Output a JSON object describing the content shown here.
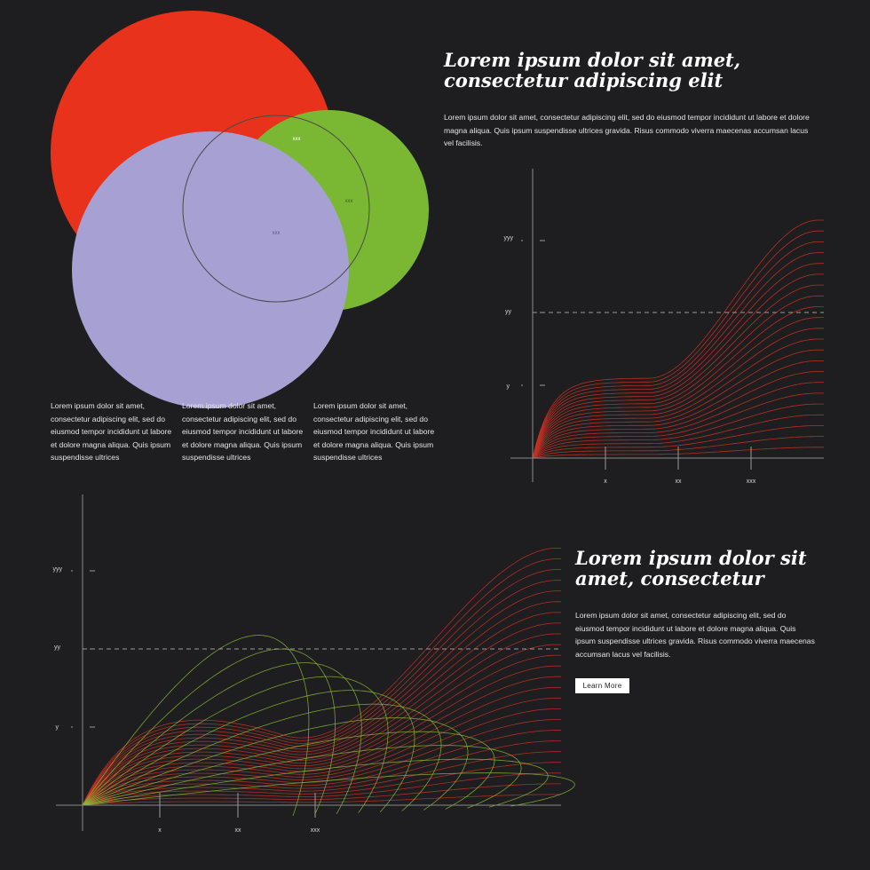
{
  "venn": {
    "label_red": "xxx",
    "label_green": "xxx",
    "label_center": "xxx",
    "colors": {
      "red": "#e8321b",
      "green": "#7ab833",
      "lavender": "#a6a1d2",
      "outline": "#4a4a4a"
    }
  },
  "top": {
    "heading": "Lorem ipsum dolor sit amet, consectetur adipiscing elit",
    "paragraph": "Lorem ipsum dolor sit amet, consectetur adipiscing elit, sed do eiusmod tempor incididunt ut labore et dolore magna aliqua. Quis ipsum suspendisse ultrices gravida. Risus commodo viverra maecenas accumsan lacus vel facilisis."
  },
  "columns": [
    {
      "text": "Lorem ipsum dolor sit amet, consectetur adipiscing elit, sed do eiusmod tempor incididunt ut labore et dolore magna aliqua. Quis ipsum suspendisse ultrices"
    },
    {
      "text": "Lorem ipsum dolor sit amet, consectetur adipiscing elit, sed do eiusmod tempor incididunt ut labore et dolore magna aliqua. Quis ipsum suspendisse ultrices"
    },
    {
      "text": "Lorem ipsum dolor sit amet, consectetur adipiscing elit, sed do eiusmod tempor incididunt ut labore et dolore magna aliqua. Quis ipsum suspendisse ultrices"
    }
  ],
  "bottom": {
    "heading": "Lorem ipsum dolor sit amet, consectetur",
    "paragraph": "Lorem ipsum dolor sit amet, consectetur adipiscing elit, sed do eiusmod tempor incididunt ut labore et dolore magna aliqua. Quis ipsum suspendisse ultrices gravida. Risus commodo viverra maecenas accumsan lacus vel facilisis.",
    "button_label": "Learn More"
  },
  "chart_data": [
    {
      "type": "line",
      "title": "",
      "y_ticks": [
        "y",
        "yy",
        "yyy"
      ],
      "x_ticks": [
        "x",
        "xx",
        "xxx"
      ],
      "dashed_reference": "yy",
      "series_colors": [
        "#c63324"
      ]
    },
    {
      "type": "line",
      "title": "",
      "y_ticks": [
        "y",
        "yy",
        "yyy"
      ],
      "x_ticks": [
        "x",
        "xx",
        "xxx"
      ],
      "dashed_reference": "yy",
      "series_colors": [
        "#c63324",
        "#8ab836"
      ]
    }
  ]
}
